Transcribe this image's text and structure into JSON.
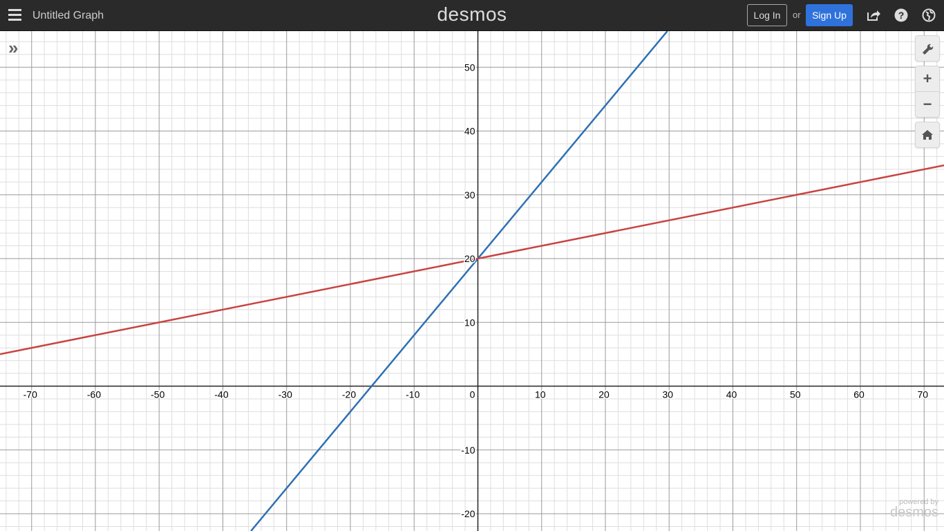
{
  "header": {
    "title": "Untitled Graph",
    "logo": "desmos",
    "login_label": "Log In",
    "or_label": "or",
    "signup_label": "Sign Up",
    "icons": [
      "menu-icon",
      "share-icon",
      "help-icon",
      "language-globe-icon"
    ]
  },
  "controls": {
    "icons": [
      "expand-list-icon",
      "wrench-icon",
      "zoom-in-icon",
      "zoom-out-icon",
      "home-icon"
    ],
    "zoom_in": "+",
    "zoom_out": "−"
  },
  "watermark": {
    "powered_by": "powered by",
    "brand": "desmos"
  },
  "chart_data": {
    "type": "line",
    "xlim": [
      -75,
      73
    ],
    "ylim": [
      -23,
      56
    ],
    "grid": true,
    "major_step": 10,
    "minor_step": 2,
    "x_ticks": [
      -70,
      -60,
      -50,
      -40,
      -30,
      -20,
      -10,
      0,
      10,
      20,
      30,
      40,
      50,
      60,
      70
    ],
    "y_ticks": [
      -20,
      -10,
      10,
      20,
      30,
      40,
      50
    ],
    "series": [
      {
        "color": "#2d70b3",
        "expression_slope": 1.2,
        "intercept": 20
      },
      {
        "color": "#c74440",
        "expression_slope": 0.2,
        "intercept": 20
      }
    ]
  }
}
